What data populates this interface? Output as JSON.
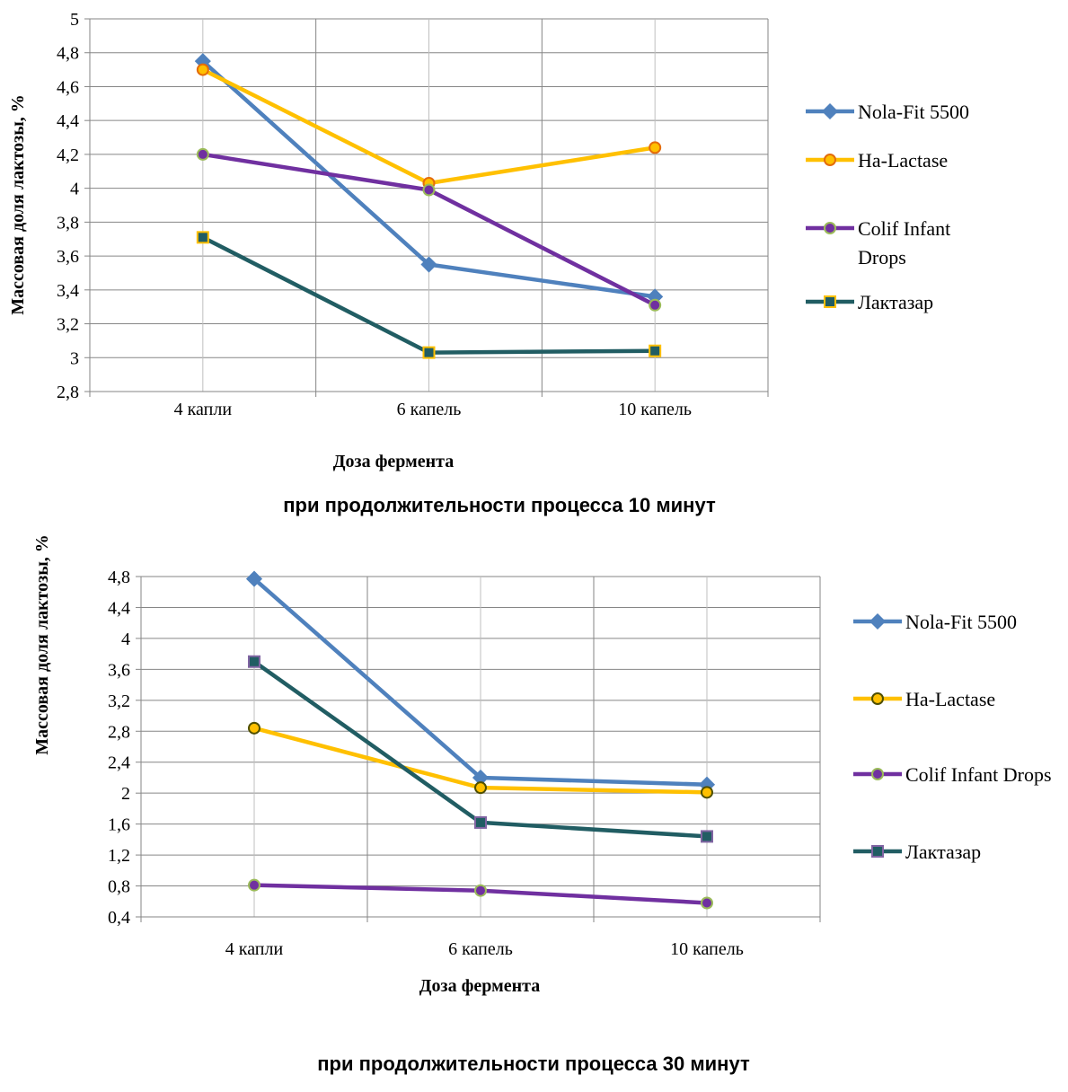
{
  "chart_data": [
    {
      "type": "line",
      "caption": "при продолжительности процесса 10 минут",
      "xlabel": "Доза фермента",
      "ylabel": "Массовая доля лактозы, %",
      "categories": [
        "4 капли",
        "6 капель",
        "10 капель"
      ],
      "ylim": [
        2.8,
        5
      ],
      "ystep": 0.2,
      "grid": true,
      "legend_position": "right",
      "series": [
        {
          "name": "Nola-Fit 5500",
          "values": [
            4.75,
            3.55,
            3.36
          ],
          "color": "#4f81bd",
          "marker": "diamond",
          "marker_fill": "#4f81bd",
          "marker_stroke": "#4f81bd"
        },
        {
          "name": "Ha-Lactase",
          "values": [
            4.7,
            4.03,
            4.24
          ],
          "color": "#ffc000",
          "marker": "circle",
          "marker_fill": "#ffc000",
          "marker_stroke": "#e46c0a"
        },
        {
          "name": "Colif Infant Drops",
          "legend_lines": [
            "Colif Infant",
            "Drops"
          ],
          "values": [
            4.2,
            3.99,
            3.31
          ],
          "color": "#7030a0",
          "marker": "circle",
          "marker_fill": "#7030a0",
          "marker_stroke": "#9bbb59"
        },
        {
          "name": "Лактазар",
          "values": [
            3.71,
            3.03,
            3.04
          ],
          "color": "#215d63",
          "marker": "square",
          "marker_fill": "#215d63",
          "marker_stroke": "#ffc000"
        }
      ]
    },
    {
      "type": "line",
      "caption": "при продолжительности процесса 30 минут",
      "xlabel": "Доза фермента",
      "ylabel": "Массовая доля лактозы, %",
      "categories": [
        "4 капли",
        "6 капель",
        "10 капель"
      ],
      "ylim": [
        0.4,
        4.8
      ],
      "ystep": 0.4,
      "grid": true,
      "legend_position": "right",
      "series": [
        {
          "name": "Nola-Fit 5500",
          "values": [
            4.77,
            2.2,
            2.11
          ],
          "color": "#4f81bd",
          "marker": "diamond",
          "marker_fill": "#4f81bd",
          "marker_stroke": "#4f81bd"
        },
        {
          "name": "Ha-Lactase",
          "values": [
            2.84,
            2.07,
            2.01
          ],
          "color": "#ffc000",
          "marker": "circle",
          "marker_fill": "#ffc000",
          "marker_stroke": "#4f4f00"
        },
        {
          "name": "Colif Infant Drops",
          "values": [
            0.81,
            0.74,
            0.58
          ],
          "color": "#7030a0",
          "marker": "circle",
          "marker_fill": "#7030a0",
          "marker_stroke": "#9bbb59"
        },
        {
          "name": "Лактазар",
          "values": [
            3.7,
            1.62,
            1.44
          ],
          "color": "#215d63",
          "marker": "square",
          "marker_fill": "#215d63",
          "marker_stroke": "#8064a2"
        }
      ]
    }
  ]
}
